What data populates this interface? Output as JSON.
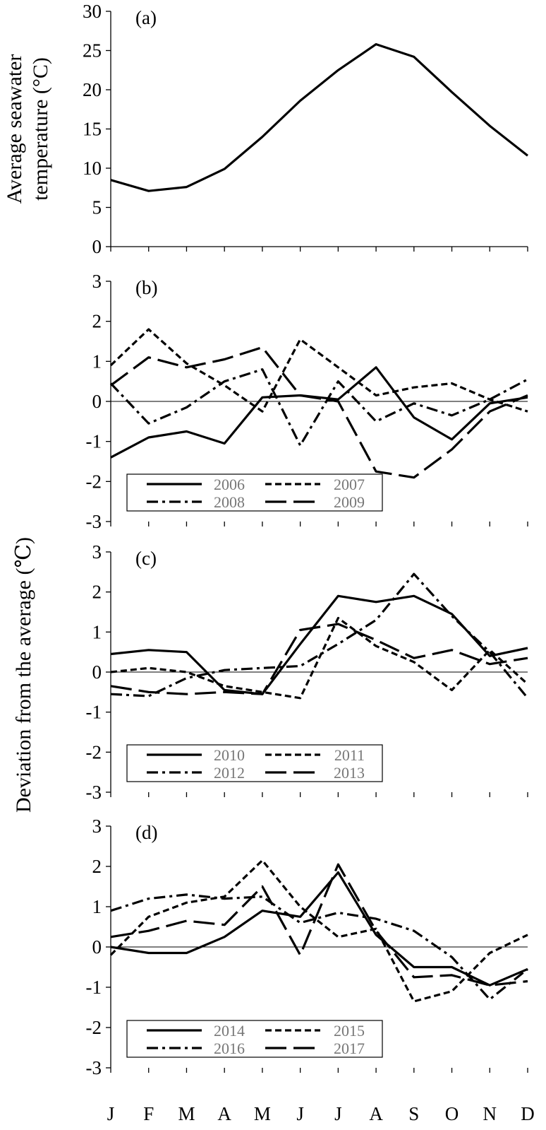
{
  "chart_data": [
    {
      "type": "line",
      "panel_label": "(a)",
      "ylabel": "Average seawater temperature (°C)",
      "ylabel_lines": [
        "Average seawater",
        "temperature (°C)"
      ],
      "ylim": [
        0,
        30
      ],
      "yticks": [
        0,
        5,
        10,
        15,
        20,
        25,
        30
      ],
      "categories": [
        "J",
        "F",
        "M",
        "A",
        "M",
        "J",
        "J",
        "A",
        "S",
        "O",
        "N",
        "D"
      ],
      "series": [
        {
          "values": [
            8.5,
            7.1,
            7.6,
            9.9,
            14.0,
            18.6,
            22.5,
            25.8,
            24.2,
            19.7,
            15.4,
            11.6
          ],
          "style": "solid"
        }
      ]
    },
    {
      "type": "line",
      "panel_label": "(b)",
      "ylim": [
        -3,
        3
      ],
      "yticks": [
        -3,
        -2,
        -1,
        0,
        1,
        2,
        3
      ],
      "categories": [
        "J",
        "F",
        "M",
        "A",
        "M",
        "J",
        "J",
        "A",
        "S",
        "O",
        "N",
        "D"
      ],
      "series": [
        {
          "name": "2006",
          "style": "solid",
          "values": [
            -1.4,
            -0.9,
            -0.75,
            -1.05,
            0.1,
            0.15,
            0.05,
            0.85,
            -0.4,
            -0.95,
            -0.05,
            0.1
          ]
        },
        {
          "name": "2007",
          "style": "dash",
          "values": [
            0.9,
            1.8,
            0.95,
            0.4,
            -0.25,
            1.55,
            0.85,
            0.15,
            0.35,
            0.45,
            0.05,
            -0.25
          ]
        },
        {
          "name": "2008",
          "style": "dashdot",
          "values": [
            0.45,
            -0.55,
            -0.15,
            0.5,
            0.8,
            -1.1,
            0.5,
            -0.5,
            -0.05,
            -0.35,
            0.05,
            0.55
          ]
        },
        {
          "name": "2009",
          "style": "longdash",
          "values": [
            0.4,
            1.1,
            0.85,
            1.05,
            1.35,
            0.15,
            0.0,
            -1.75,
            -1.9,
            -1.2,
            -0.25,
            0.15
          ]
        }
      ],
      "legend": [
        [
          "2006",
          "2007"
        ],
        [
          "2008",
          "2009"
        ]
      ],
      "legend_position": "bottom-left"
    },
    {
      "type": "line",
      "panel_label": "(c)",
      "ylim": [
        -3,
        3
      ],
      "yticks": [
        -3,
        -2,
        -1,
        0,
        1,
        2,
        3
      ],
      "categories": [
        "J",
        "F",
        "M",
        "A",
        "M",
        "J",
        "J",
        "A",
        "S",
        "O",
        "N",
        "D"
      ],
      "series": [
        {
          "name": "2010",
          "style": "solid",
          "values": [
            0.45,
            0.55,
            0.5,
            -0.45,
            -0.55,
            0.7,
            1.9,
            1.75,
            1.9,
            1.45,
            0.4,
            0.6
          ]
        },
        {
          "name": "2011",
          "style": "dash",
          "values": [
            0.0,
            0.1,
            0.0,
            -0.35,
            -0.5,
            -0.65,
            1.35,
            0.65,
            0.25,
            -0.45,
            0.55,
            -0.3
          ]
        },
        {
          "name": "2012",
          "style": "dashdot",
          "values": [
            -0.55,
            -0.6,
            -0.15,
            0.05,
            0.1,
            0.15,
            0.7,
            1.3,
            2.45,
            1.4,
            0.5,
            -0.65
          ]
        },
        {
          "name": "2013",
          "style": "longdash",
          "values": [
            -0.35,
            -0.5,
            -0.55,
            -0.5,
            -0.55,
            1.05,
            1.2,
            0.8,
            0.35,
            0.55,
            0.2,
            0.35
          ]
        }
      ],
      "legend": [
        [
          "2010",
          "2011"
        ],
        [
          "2012",
          "2013"
        ]
      ],
      "legend_position": "bottom-left"
    },
    {
      "type": "line",
      "panel_label": "(d)",
      "ylim": [
        -3,
        3
      ],
      "yticks": [
        -3,
        -2,
        -1,
        0,
        1,
        2,
        3
      ],
      "categories": [
        "J",
        "F",
        "M",
        "A",
        "M",
        "J",
        "J",
        "A",
        "S",
        "O",
        "N",
        "D"
      ],
      "series": [
        {
          "name": "2014",
          "style": "solid",
          "values": [
            0.0,
            -0.15,
            -0.15,
            0.25,
            0.9,
            0.75,
            1.85,
            0.3,
            -0.5,
            -0.5,
            -0.95,
            -0.55
          ]
        },
        {
          "name": "2015",
          "style": "dash",
          "values": [
            -0.2,
            0.75,
            1.1,
            1.25,
            2.15,
            1.0,
            0.25,
            0.45,
            -1.35,
            -1.1,
            -0.15,
            0.3
          ]
        },
        {
          "name": "2016",
          "style": "dashdot",
          "values": [
            0.9,
            1.2,
            1.3,
            1.2,
            1.25,
            0.6,
            0.85,
            0.7,
            0.4,
            -0.25,
            -1.3,
            -0.55
          ]
        },
        {
          "name": "2017",
          "style": "longdash",
          "values": [
            0.25,
            0.4,
            0.65,
            0.55,
            1.5,
            -0.2,
            2.05,
            0.4,
            -0.75,
            -0.7,
            -0.95,
            -0.85
          ]
        }
      ],
      "legend": [
        [
          "2014",
          "2015"
        ],
        [
          "2016",
          "2017"
        ]
      ],
      "legend_position": "bottom-left"
    }
  ],
  "shared_ylabel": "Deviation from the average (℃)"
}
